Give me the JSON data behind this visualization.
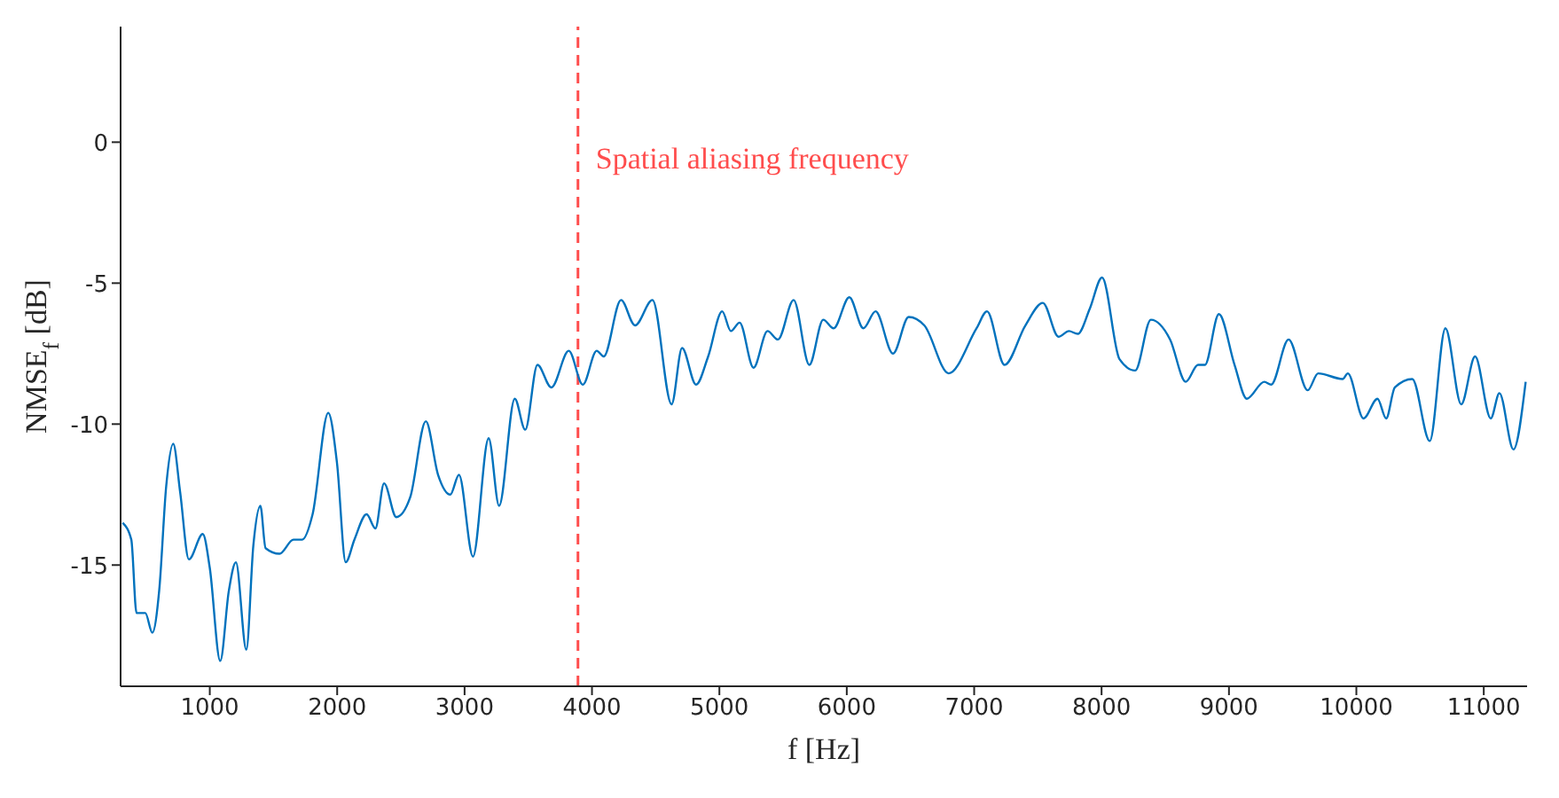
{
  "chart_data": {
    "type": "line",
    "xlabel": "f [Hz]",
    "ylabel": "NMSE$_{f}$ [dB]",
    "xlim": [
      300,
      11340
    ],
    "ylim": [
      -19.3,
      4.1
    ],
    "xticks": [
      1000,
      2000,
      3000,
      4000,
      5000,
      6000,
      7000,
      8000,
      9000,
      10000,
      11000
    ],
    "yticks": [
      -15,
      -10,
      -5,
      0
    ],
    "grid": false,
    "legend": false,
    "marker": "none",
    "line_style": "solid",
    "ref_lines": [
      {
        "axis": "x",
        "value": 3890,
        "label": "Spatial aliasing frequency",
        "color": "#ff4d4d",
        "line_style": "dashed"
      }
    ],
    "series": [
      {
        "color": "#0072bd",
        "x": [
          316,
          384,
          425,
          494,
          549,
          603,
          658,
          713,
          767,
          836,
          945,
          1000,
          1082,
          1150,
          1205,
          1287,
          1342,
          1397,
          1438,
          1547,
          1657,
          1725,
          1807,
          1930,
          1999,
          2067,
          2135,
          2231,
          2300,
          2368,
          2464,
          2573,
          2696,
          2792,
          2888,
          2956,
          3066,
          3189,
          3271,
          3394,
          3476,
          3572,
          3681,
          3818,
          3928,
          4037,
          4092,
          4228,
          4338,
          4475,
          4625,
          4707,
          4817,
          4912,
          5022,
          5090,
          5159,
          5268,
          5378,
          5460,
          5583,
          5706,
          5815,
          5897,
          6020,
          6130,
          6226,
          6363,
          6486,
          6609,
          6800,
          7019,
          7101,
          7238,
          7402,
          7539,
          7662,
          7744,
          7813,
          7908,
          8004,
          8141,
          8264,
          8387,
          8538,
          8661,
          8757,
          8811,
          8921,
          9044,
          9140,
          9277,
          9331,
          9468,
          9618,
          9700,
          9892,
          9933,
          10056,
          10166,
          10234,
          10302,
          10439,
          10576,
          10699,
          10823,
          10932,
          11055,
          11123,
          11233,
          11329
        ],
        "values": [
          -13.5,
          -14.1,
          -16.7,
          -16.7,
          -17.4,
          -15.9,
          -12.2,
          -10.7,
          -12.4,
          -14.8,
          -13.9,
          -15.1,
          -18.4,
          -15.9,
          -14.9,
          -18.0,
          -14.3,
          -12.9,
          -14.4,
          -14.6,
          -14.1,
          -14.1,
          -13.2,
          -9.6,
          -11.4,
          -14.9,
          -14.1,
          -13.2,
          -13.7,
          -12.1,
          -13.3,
          -12.6,
          -9.9,
          -11.8,
          -12.5,
          -11.8,
          -14.7,
          -10.5,
          -12.9,
          -9.1,
          -10.2,
          -7.9,
          -8.7,
          -7.4,
          -8.6,
          -7.4,
          -7.6,
          -5.6,
          -6.5,
          -5.6,
          -9.3,
          -7.3,
          -8.6,
          -7.6,
          -6.0,
          -6.7,
          -6.4,
          -8.0,
          -6.7,
          -7.0,
          -5.6,
          -7.9,
          -6.3,
          -6.6,
          -5.5,
          -6.6,
          -6.0,
          -7.5,
          -6.2,
          -6.5,
          -8.2,
          -6.6,
          -6.0,
          -7.9,
          -6.5,
          -5.7,
          -6.9,
          -6.7,
          -6.8,
          -5.9,
          -4.8,
          -7.7,
          -8.1,
          -6.3,
          -7.0,
          -8.5,
          -7.9,
          -7.9,
          -6.1,
          -7.9,
          -9.1,
          -8.5,
          -8.6,
          -7.0,
          -8.8,
          -8.2,
          -8.4,
          -8.2,
          -9.8,
          -9.1,
          -9.8,
          -8.7,
          -8.4,
          -10.6,
          -6.6,
          -9.3,
          -7.6,
          -9.8,
          -8.9,
          -10.9,
          -8.5
        ]
      }
    ]
  }
}
